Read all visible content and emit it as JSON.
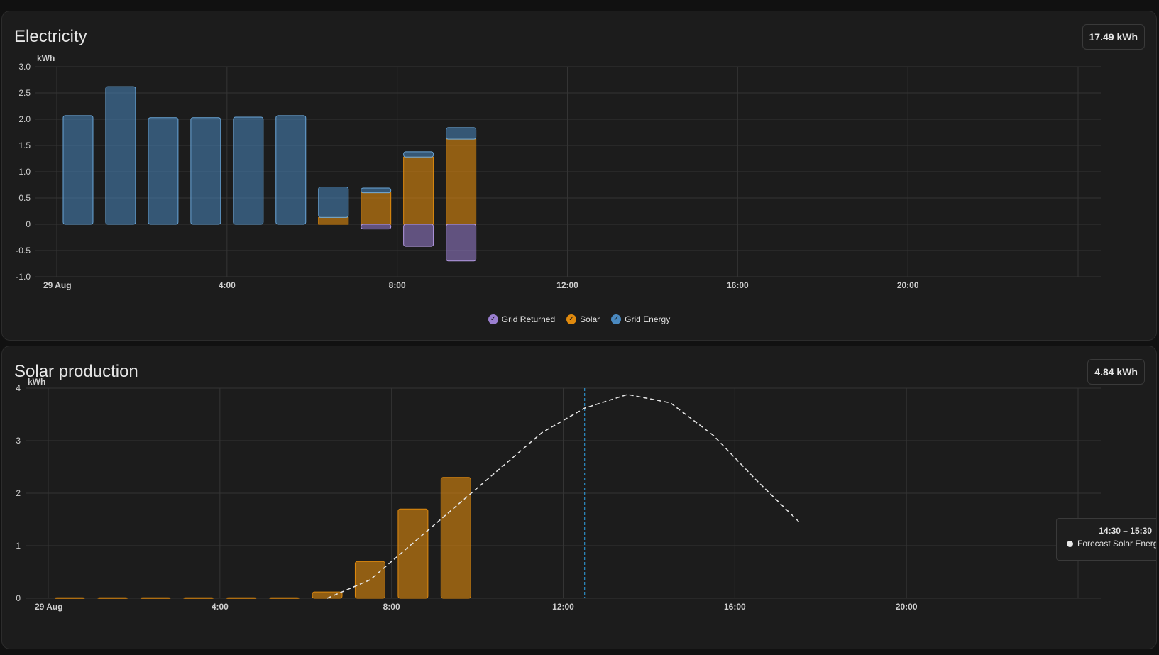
{
  "colors": {
    "grid_energy": "#4a89c0",
    "solar": "#e08a0e",
    "grid_returned": "#9b7fd1",
    "forecast": "#e8e8e8",
    "now_line": "#2fa4e7"
  },
  "electricity": {
    "title": "Electricity",
    "total": "17.49 kWh",
    "legend": [
      {
        "label": "Grid Returned",
        "color": "#9b7fd1",
        "icon": "check-icon"
      },
      {
        "label": "Solar",
        "color": "#e08a0e",
        "icon": "check-icon"
      },
      {
        "label": "Grid Energy",
        "color": "#4a89c0",
        "icon": "check-icon"
      }
    ]
  },
  "solar": {
    "title": "Solar production",
    "total": "4.84 kWh",
    "tooltip": {
      "time": "14:30 – 15:30",
      "series": "Forecast Solar Energy:"
    }
  },
  "chart_data": [
    {
      "type": "bar",
      "title": "Electricity",
      "unit_label": "kWh",
      "ylim": [
        -1.0,
        3.0
      ],
      "yticks": [
        "3.0",
        "2.5",
        "2.0",
        "1.5",
        "1.0",
        "0.5",
        "0",
        "-0.5",
        "-1.0"
      ],
      "xticks": [
        "29 Aug",
        "4:00",
        "8:00",
        "12:00",
        "16:00",
        "20:00"
      ],
      "x": [
        "00:00",
        "01:00",
        "02:00",
        "03:00",
        "04:00",
        "05:00",
        "06:00",
        "07:00",
        "08:00",
        "09:00"
      ],
      "series": [
        {
          "name": "Grid Energy",
          "values": [
            2.07,
            2.62,
            2.03,
            2.03,
            2.04,
            2.07,
            0.58,
            0.09,
            0.1,
            0.22
          ]
        },
        {
          "name": "Solar",
          "values": [
            0,
            0,
            0,
            0,
            0,
            0,
            0.13,
            0.6,
            1.28,
            1.62
          ]
        },
        {
          "name": "Grid Returned",
          "values": [
            0,
            0,
            0,
            0,
            0,
            0,
            0,
            -0.09,
            -0.42,
            -0.7
          ]
        }
      ],
      "legend": "bottom-center",
      "grid": true
    },
    {
      "type": "bar",
      "title": "Solar production",
      "unit_label": "kWh",
      "ylim": [
        0,
        4
      ],
      "yticks": [
        "4",
        "3",
        "2",
        "1",
        "0"
      ],
      "xticks": [
        "29 Aug",
        "4:00",
        "8:00",
        "12:00",
        "16:00",
        "20:00"
      ],
      "x": [
        "00:00",
        "01:00",
        "02:00",
        "03:00",
        "04:00",
        "05:00",
        "06:00",
        "07:00",
        "08:00",
        "09:00"
      ],
      "series": [
        {
          "name": "Solar",
          "values": [
            0.01,
            0.01,
            0.01,
            0.01,
            0.01,
            0.01,
            0.12,
            0.7,
            1.7,
            2.3
          ]
        }
      ],
      "forecast": {
        "name": "Forecast Solar Energy",
        "x": [
          6.5,
          7.5,
          8.5,
          9.5,
          10.5,
          11.5,
          12.5,
          13.5,
          14.5,
          15.5,
          16.5,
          17.5
        ],
        "values": [
          0.0,
          0.35,
          1.05,
          1.75,
          2.45,
          3.15,
          3.62,
          3.88,
          3.72,
          3.1,
          2.25,
          1.45
        ]
      },
      "now_marker_hour": 12.5,
      "grid": true
    }
  ]
}
